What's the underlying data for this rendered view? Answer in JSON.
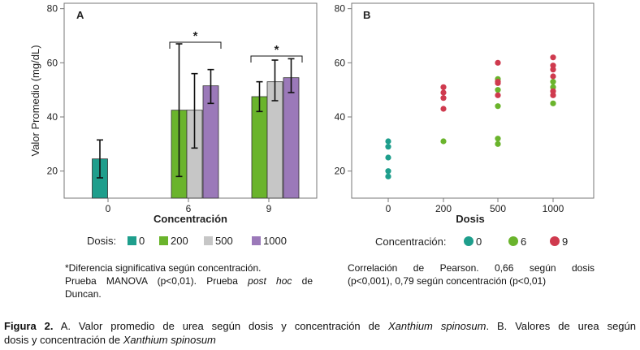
{
  "colors": {
    "d0": "#1e9e8c",
    "d200": "#6ab42c",
    "d500": "#c6c6c6",
    "d1000": "#9b79b9",
    "c0": "#1e9e8c",
    "c6": "#6ab42c",
    "c9": "#cf3a4e",
    "axis": "#777777"
  },
  "chart_data": [
    {
      "panel": "A",
      "type": "bar",
      "xlabel": "Concentración",
      "ylabel": "Valor Promedio (mg/dL)",
      "categories": [
        "0",
        "6",
        "9"
      ],
      "ylim": [
        10,
        82
      ],
      "yticks": [
        20,
        40,
        60,
        80
      ],
      "series": [
        {
          "name": "0",
          "color_key": "d0",
          "values": [
            24.5,
            null,
            null
          ],
          "err_low": [
            17.5,
            null,
            null
          ],
          "err_high": [
            31.5,
            null,
            null
          ]
        },
        {
          "name": "200",
          "color_key": "d200",
          "values": [
            null,
            42.5,
            47.5
          ],
          "err_low": [
            null,
            18,
            42
          ],
          "err_high": [
            null,
            67,
            53
          ]
        },
        {
          "name": "500",
          "color_key": "d500",
          "values": [
            null,
            42.5,
            53
          ],
          "err_low": [
            null,
            28.5,
            46
          ],
          "err_high": [
            null,
            56,
            61
          ]
        },
        {
          "name": "1000",
          "color_key": "d1000",
          "values": [
            null,
            51.5,
            54.5
          ],
          "err_low": [
            null,
            45,
            49
          ],
          "err_high": [
            null,
            57.5,
            61.5
          ]
        }
      ],
      "annotations": [
        {
          "text": "*",
          "category": "6"
        },
        {
          "text": "*",
          "category": "9"
        }
      ],
      "legend": {
        "title": "Dosis:",
        "position": "bottom"
      }
    },
    {
      "panel": "B",
      "type": "scatter",
      "xlabel": "Dosis",
      "xcategories": [
        "0",
        "200",
        "500",
        "1000"
      ],
      "ylim": [
        10,
        82
      ],
      "yticks": [
        20,
        40,
        60,
        80
      ],
      "series": [
        {
          "name": "0",
          "color_key": "c0",
          "points": [
            [
              0,
              31
            ],
            [
              0,
              29
            ],
            [
              0,
              25
            ],
            [
              0,
              20
            ],
            [
              0,
              18
            ]
          ]
        },
        {
          "name": "6",
          "color_key": "c6",
          "points": [
            [
              200,
              31
            ],
            [
              500,
              54
            ],
            [
              500,
              50
            ],
            [
              500,
              44
            ],
            [
              500,
              32
            ],
            [
              500,
              30
            ],
            [
              1000,
              53
            ],
            [
              1000,
              51
            ],
            [
              1000,
              45
            ]
          ]
        },
        {
          "name": "9",
          "color_key": "c9",
          "points": [
            [
              200,
              51
            ],
            [
              200,
              49
            ],
            [
              200,
              47
            ],
            [
              200,
              43
            ],
            [
              500,
              60
            ],
            [
              500,
              53
            ],
            [
              500,
              52.5
            ],
            [
              500,
              48
            ],
            [
              1000,
              62
            ],
            [
              1000,
              59
            ],
            [
              1000,
              57.5
            ],
            [
              1000,
              55
            ],
            [
              1000,
              49.5
            ],
            [
              1000,
              48
            ]
          ]
        }
      ],
      "legend": {
        "title": "Concentración:",
        "position": "bottom"
      }
    }
  ],
  "panel_a": {
    "letter": "A"
  },
  "panel_b": {
    "letter": "B"
  },
  "notes": {
    "a_line1": "*Diferencia significativa según concentración.",
    "a_line2_pre": "Prueba MANOVA (p<0,01). Prueba ",
    "a_line2_ital": "post hoc",
    "a_line2_post": " de",
    "a_line3": "Duncan.",
    "b_line1": "Correlación de Pearson. 0,66 según dosis",
    "b_line2": "(p<0,001), 0,79 según concentración (p<0,01)"
  },
  "caption": {
    "label": "Figura 2.",
    "t1": " A. Valor promedio de urea según dosis y concentración de ",
    "i1": "Xanthium spinosum",
    "t2": ". B. Valores de urea según",
    "t3": "dosis y concentración de ",
    "i2": "Xanthium spinosum"
  }
}
